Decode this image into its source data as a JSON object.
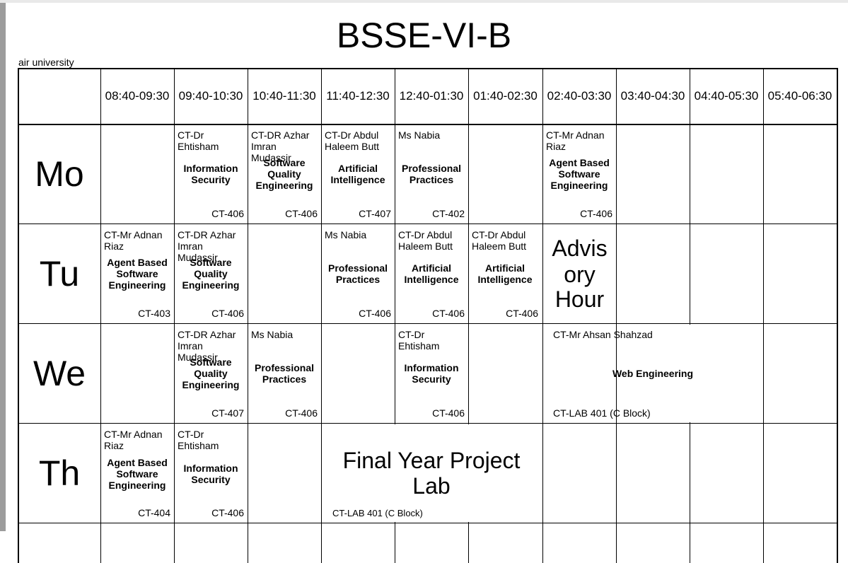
{
  "title": "BSSE-VI-B",
  "org": "air university",
  "times": [
    "08:40-09:30",
    "09:40-10:30",
    "10:40-11:30",
    "11:40-12:30",
    "12:40-01:30",
    "01:40-02:30",
    "02:40-03:30",
    "03:40-04:30",
    "04:40-05:30",
    "05:40-06:30"
  ],
  "days": [
    "Mo",
    "Tu",
    "We",
    "Th"
  ],
  "mo": {
    "c1": {
      "teacher": "CT-Dr Ehtisham",
      "subject": "Information Security",
      "room": "CT-406"
    },
    "c2": {
      "teacher": "CT-DR Azhar Imran Mudassir",
      "subject": "Software Quality Engineering",
      "room": "CT-406"
    },
    "c3": {
      "teacher": "CT-Dr Abdul Haleem Butt",
      "subject": "Artificial Intelligence",
      "room": "CT-407"
    },
    "c4": {
      "teacher": "Ms Nabia",
      "subject": "Professional Practices",
      "room": "CT-402"
    },
    "c6": {
      "teacher": "CT-Mr Adnan Riaz",
      "subject": "Agent Based Software Engineering",
      "room": "CT-406"
    }
  },
  "tu": {
    "c0": {
      "teacher": "CT-Mr Adnan Riaz",
      "subject": "Agent Based Software Engineering",
      "room": "CT-403"
    },
    "c1": {
      "teacher": "CT-DR Azhar Imran Mudassir",
      "subject": "Software Quality Engineering",
      "room": "CT-406"
    },
    "c3": {
      "teacher": "Ms Nabia",
      "subject": "Professional Practices",
      "room": "CT-406"
    },
    "c4": {
      "teacher": "CT-Dr Abdul Haleem Butt",
      "subject": "Artificial Intelligence",
      "room": "CT-406"
    },
    "c5": {
      "teacher": "CT-Dr Abdul Haleem Butt",
      "subject": "Artificial Intelligence",
      "room": "CT-406"
    },
    "c6": {
      "lines": [
        "Advis",
        "ory",
        "Hour"
      ]
    }
  },
  "we": {
    "c1": {
      "teacher": "CT-DR Azhar Imran Mudassir",
      "subject": "Software Quality Engineering",
      "room": "CT-407"
    },
    "c2": {
      "teacher": "Ms Nabia",
      "subject": "Professional Practices",
      "room": "CT-406"
    },
    "c4": {
      "teacher": "CT-Dr Ehtisham",
      "subject": "Information Security",
      "room": "CT-406"
    },
    "c6": {
      "teacher": "CT-Mr Ahsan Shahzad",
      "subject": "Web Engineering",
      "room": "CT-LAB 401 (C Block)"
    }
  },
  "th": {
    "c0": {
      "teacher": "CT-Mr Adnan Riaz",
      "subject": "Agent Based Software Engineering",
      "room": "CT-404"
    },
    "c1": {
      "teacher": "CT-Dr Ehtisham",
      "subject": "Information Security",
      "room": "CT-406"
    },
    "c3": {
      "title": "Final Year Project Lab",
      "room": "CT-LAB 401 (C Block)"
    }
  }
}
